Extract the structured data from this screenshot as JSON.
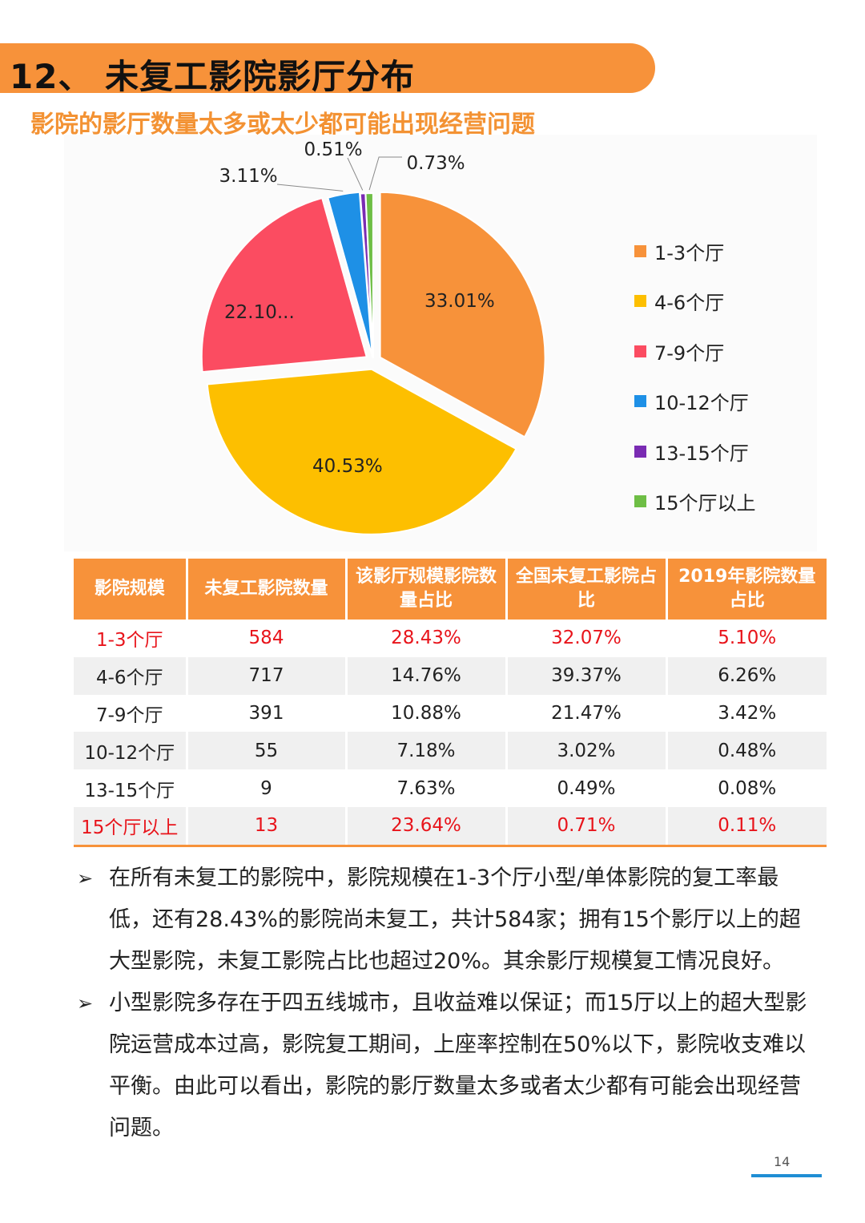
{
  "header": {
    "title": "12、 未复工影院影厅分布",
    "subtitle": "影院的影厅数量太多或太少都可能出现经营问题"
  },
  "chart_data": {
    "type": "pie",
    "categories": [
      "1-3个厅",
      "4-6个厅",
      "7-9个厅",
      "10-12个厅",
      "13-15个厅",
      "15个厅以上"
    ],
    "values": [
      33.01,
      40.53,
      22.1,
      3.11,
      0.51,
      0.73
    ],
    "labels": [
      "33.01%",
      "40.53%",
      "22.10...",
      "3.11%",
      "0.51%",
      "0.73%"
    ],
    "colors": [
      "#f7923a",
      "#fdbf00",
      "#fb4c61",
      "#1e90e6",
      "#7a2bb3",
      "#6ebe45"
    ],
    "legend_position": "right"
  },
  "table": {
    "headers": [
      "影院规模",
      "未复工影院数量",
      "该影厅规模影院数量占比",
      "全国未复工影院占比",
      "2019年影院数量占比"
    ],
    "rows": [
      [
        "1-3个厅",
        "584",
        "28.43%",
        "32.07%",
        "5.10%"
      ],
      [
        "4-6个厅",
        "717",
        "14.76%",
        "39.37%",
        "6.26%"
      ],
      [
        "7-9个厅",
        "391",
        "10.88%",
        "21.47%",
        "3.42%"
      ],
      [
        "10-12个厅",
        "55",
        "7.18%",
        "3.02%",
        "0.48%"
      ],
      [
        "13-15个厅",
        "9",
        "7.63%",
        "0.49%",
        "0.08%"
      ],
      [
        "15个厅以上",
        "13",
        "23.64%",
        "0.71%",
        "0.11%"
      ]
    ]
  },
  "bullets": [
    "在所有未复工的影院中，影院规模在1-3个厅小型/单体影院的复工率最低，还有28.43%的影院尚未复工，共计584家；拥有15个影厅以上的超大型影院，未复工影院占比也超过20%。其余影厅规模复工情况良好。",
    "小型影院多存在于四五线城市，且收益难以保证；而15厅以上的超大型影院运营成本过高，影院复工期间，上座率控制在50%以下，影院收支难以平衡。由此可以看出，影院的影厅数量太多或者太少都有可能会出现经营问题。"
  ],
  "footer": {
    "page_number": "14"
  }
}
